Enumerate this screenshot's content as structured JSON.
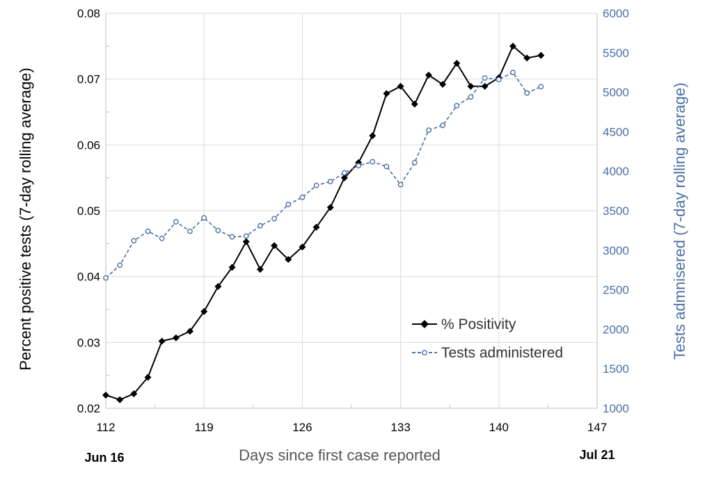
{
  "chart_data": {
    "type": "line",
    "xlabel": "Days since first case reported",
    "ylabel_left": "Percent positive tests (7-day rolling average)",
    "ylabel_right": "Tests admnisered (7-day rolling average)",
    "xlim": [
      112,
      147
    ],
    "ylim_left": [
      0.02,
      0.08
    ],
    "ylim_right": [
      1000,
      6000
    ],
    "x_ticks": [
      "112",
      "119",
      "126",
      "133",
      "140",
      "147"
    ],
    "y_ticks_left": [
      "0.02",
      "0.03",
      "0.04",
      "0.05",
      "0.06",
      "0.07",
      "0.08"
    ],
    "y_ticks_right": [
      "1000",
      "1500",
      "2000",
      "2500",
      "3000",
      "3500",
      "4000",
      "4500",
      "5000",
      "5500",
      "6000"
    ],
    "date_annotations": [
      {
        "x": 112,
        "label": "Jun 16"
      },
      {
        "x": 147,
        "label": "Jul 21"
      }
    ],
    "grid": true,
    "legend_position": "lower-right",
    "series": [
      {
        "name": "% Positivity",
        "axis": "left",
        "color": "#000000",
        "marker": "diamond",
        "line_style": "solid",
        "x": [
          112,
          113,
          114,
          115,
          116,
          117,
          118,
          119,
          120,
          121,
          122,
          123,
          124,
          125,
          126,
          127,
          128,
          129,
          130,
          131,
          132,
          133,
          134,
          135,
          136,
          137,
          138,
          139,
          140,
          141,
          142,
          143
        ],
        "values": [
          0.022,
          0.0213,
          0.0222,
          0.0247,
          0.0302,
          0.0307,
          0.0317,
          0.0347,
          0.0385,
          0.0414,
          0.0453,
          0.0411,
          0.0447,
          0.0426,
          0.0445,
          0.0475,
          0.0505,
          0.055,
          0.0573,
          0.0614,
          0.0678,
          0.0689,
          0.0662,
          0.0706,
          0.0692,
          0.0724,
          0.0689,
          0.0689,
          0.0702,
          0.075,
          0.0732,
          0.0736
        ]
      },
      {
        "name": "Tests administered",
        "axis": "right",
        "color": "#4a6fa5",
        "marker": "circle-open",
        "line_style": "dashed",
        "x": [
          112,
          113,
          114,
          115,
          116,
          117,
          118,
          119,
          120,
          121,
          122,
          123,
          124,
          125,
          126,
          127,
          128,
          129,
          130,
          131,
          132,
          133,
          134,
          135,
          136,
          137,
          138,
          139,
          140,
          141,
          142,
          143
        ],
        "values": [
          2650,
          2810,
          3120,
          3240,
          3150,
          3360,
          3240,
          3410,
          3250,
          3170,
          3180,
          3310,
          3400,
          3580,
          3670,
          3820,
          3870,
          3980,
          4070,
          4120,
          4060,
          3830,
          4110,
          4520,
          4580,
          4830,
          4940,
          5180,
          5160,
          5250,
          4990,
          5070
        ]
      }
    ]
  }
}
